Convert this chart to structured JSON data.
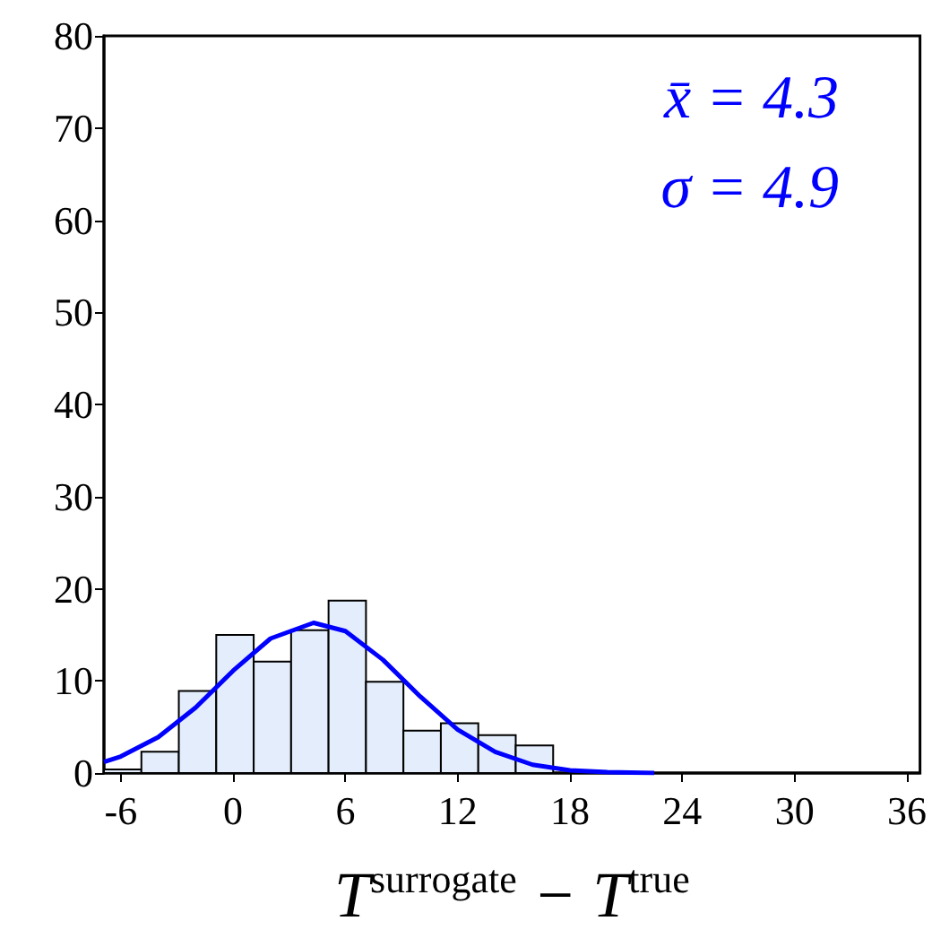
{
  "chart_data": {
    "type": "histogram",
    "xlabel": "T$^{surrogate}$ − T$^{true}$",
    "annotations": [
      "x̄ = 4.3",
      "σ = 4.9"
    ],
    "series": [
      {
        "color": "#e3edfb",
        "bins": [
          -6.9,
          -4.9,
          -2.9,
          -0.9,
          1.1,
          3.1,
          5.1,
          7.1,
          9.1,
          11.1,
          13.1,
          15.1,
          17.1
        ],
        "values": [
          0.4,
          2.3,
          8.9,
          15,
          12.1,
          15.5,
          18.7,
          9.9,
          4.6,
          5.4,
          4.1,
          3.0
        ]
      },
      {
        "type": "line",
        "color": "#0000ff",
        "x": [
          -6.9,
          -6,
          -4,
          -2,
          0,
          2,
          4.3,
          6,
          8,
          10,
          12,
          14,
          16,
          18,
          20,
          22.5
        ],
        "values": [
          1.2,
          1.8,
          3.9,
          7.1,
          11.1,
          14.6,
          16.3,
          15.4,
          12.3,
          8.3,
          4.7,
          2.3,
          0.9,
          0.3,
          0.1,
          0
        ]
      }
    ],
    "xlim": [
      -6.9,
      36.7
    ],
    "xticks": [
      -6,
      0,
      6,
      12,
      18,
      24,
      30,
      36
    ],
    "ylim": [
      0,
      80
    ],
    "yticks": [
      0,
      10,
      20,
      30,
      40,
      50,
      60,
      70,
      80
    ]
  }
}
